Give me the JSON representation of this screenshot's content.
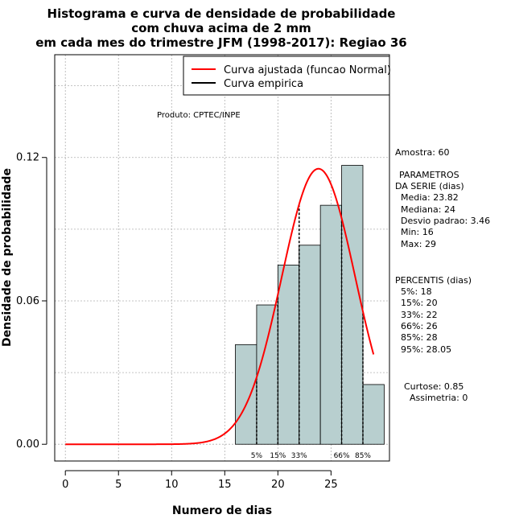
{
  "chart_data": {
    "type": "bar",
    "title_lines": [
      "Histograma e curva de densidade de probabilidade",
      "com chuva acima de 2 mm",
      "em cada mes do trimestre JFM (1998-2017): Regiao 36"
    ],
    "xlabel": "Numero de dias",
    "ylabel": "Densidade de probabilidade",
    "xlim": [
      -1,
      30.5
    ],
    "ylim": [
      -0.007,
      0.163
    ],
    "x_ticks": [
      0,
      5,
      10,
      15,
      20,
      25
    ],
    "y_ticks": [
      0.0,
      0.06,
      0.12
    ],
    "y_tick_labels": [
      "0.00",
      "0.06",
      "0.12"
    ],
    "grid": true,
    "bins": [
      {
        "start": 16,
        "end": 18,
        "density": 0.0417
      },
      {
        "start": 18,
        "end": 20,
        "density": 0.0583
      },
      {
        "start": 20,
        "end": 22,
        "density": 0.075
      },
      {
        "start": 22,
        "end": 24,
        "density": 0.0833
      },
      {
        "start": 24,
        "end": 26,
        "density": 0.1
      },
      {
        "start": 26,
        "end": 28,
        "density": 0.1167
      },
      {
        "start": 28,
        "end": 30,
        "density": 0.025
      }
    ],
    "normal_curve": {
      "mean": 23.82,
      "sd": 3.46,
      "x_from": 0,
      "x_to": 29
    },
    "percentile_lines": [
      {
        "x": 18,
        "label": "5%"
      },
      {
        "x": 20,
        "label": "15%"
      },
      {
        "x": 22,
        "label": "33%"
      },
      {
        "x": 26,
        "label": "66%"
      },
      {
        "x": 28,
        "label": "85%"
      }
    ],
    "legend": {
      "position": "top-right",
      "entries": [
        {
          "label": "Curva ajustada (funcao Normal)",
          "color": "#ff0000"
        },
        {
          "label": "Curva empirica",
          "color": "#000000"
        }
      ]
    },
    "annotations": {
      "produto": "Produto: CPTEC/INPE"
    }
  },
  "stats": {
    "amostra": "Amostra: 60",
    "parametros_title_1": "PARAMETROS",
    "parametros_title_2": "DA SERIE (dias)",
    "media": "Media: 23.82",
    "mediana": "Mediana: 24",
    "desvio": "Desvio padrao: 3.46",
    "min": "Min: 16",
    "max": "Max: 29",
    "percentis_title": "PERCENTIS (dias)",
    "p5": "5%: 18",
    "p15": "15%: 20",
    "p33": "33%: 22",
    "p66": "66%: 26",
    "p85": "85%: 28",
    "p95": "95%: 28.05",
    "curtose": "Curtose: 0.85",
    "assimetria": "Assimetria: 0"
  },
  "colors": {
    "bar_fill": "#b8cfcf",
    "curve": "#ff0000",
    "grid": "#b0b0b0"
  }
}
